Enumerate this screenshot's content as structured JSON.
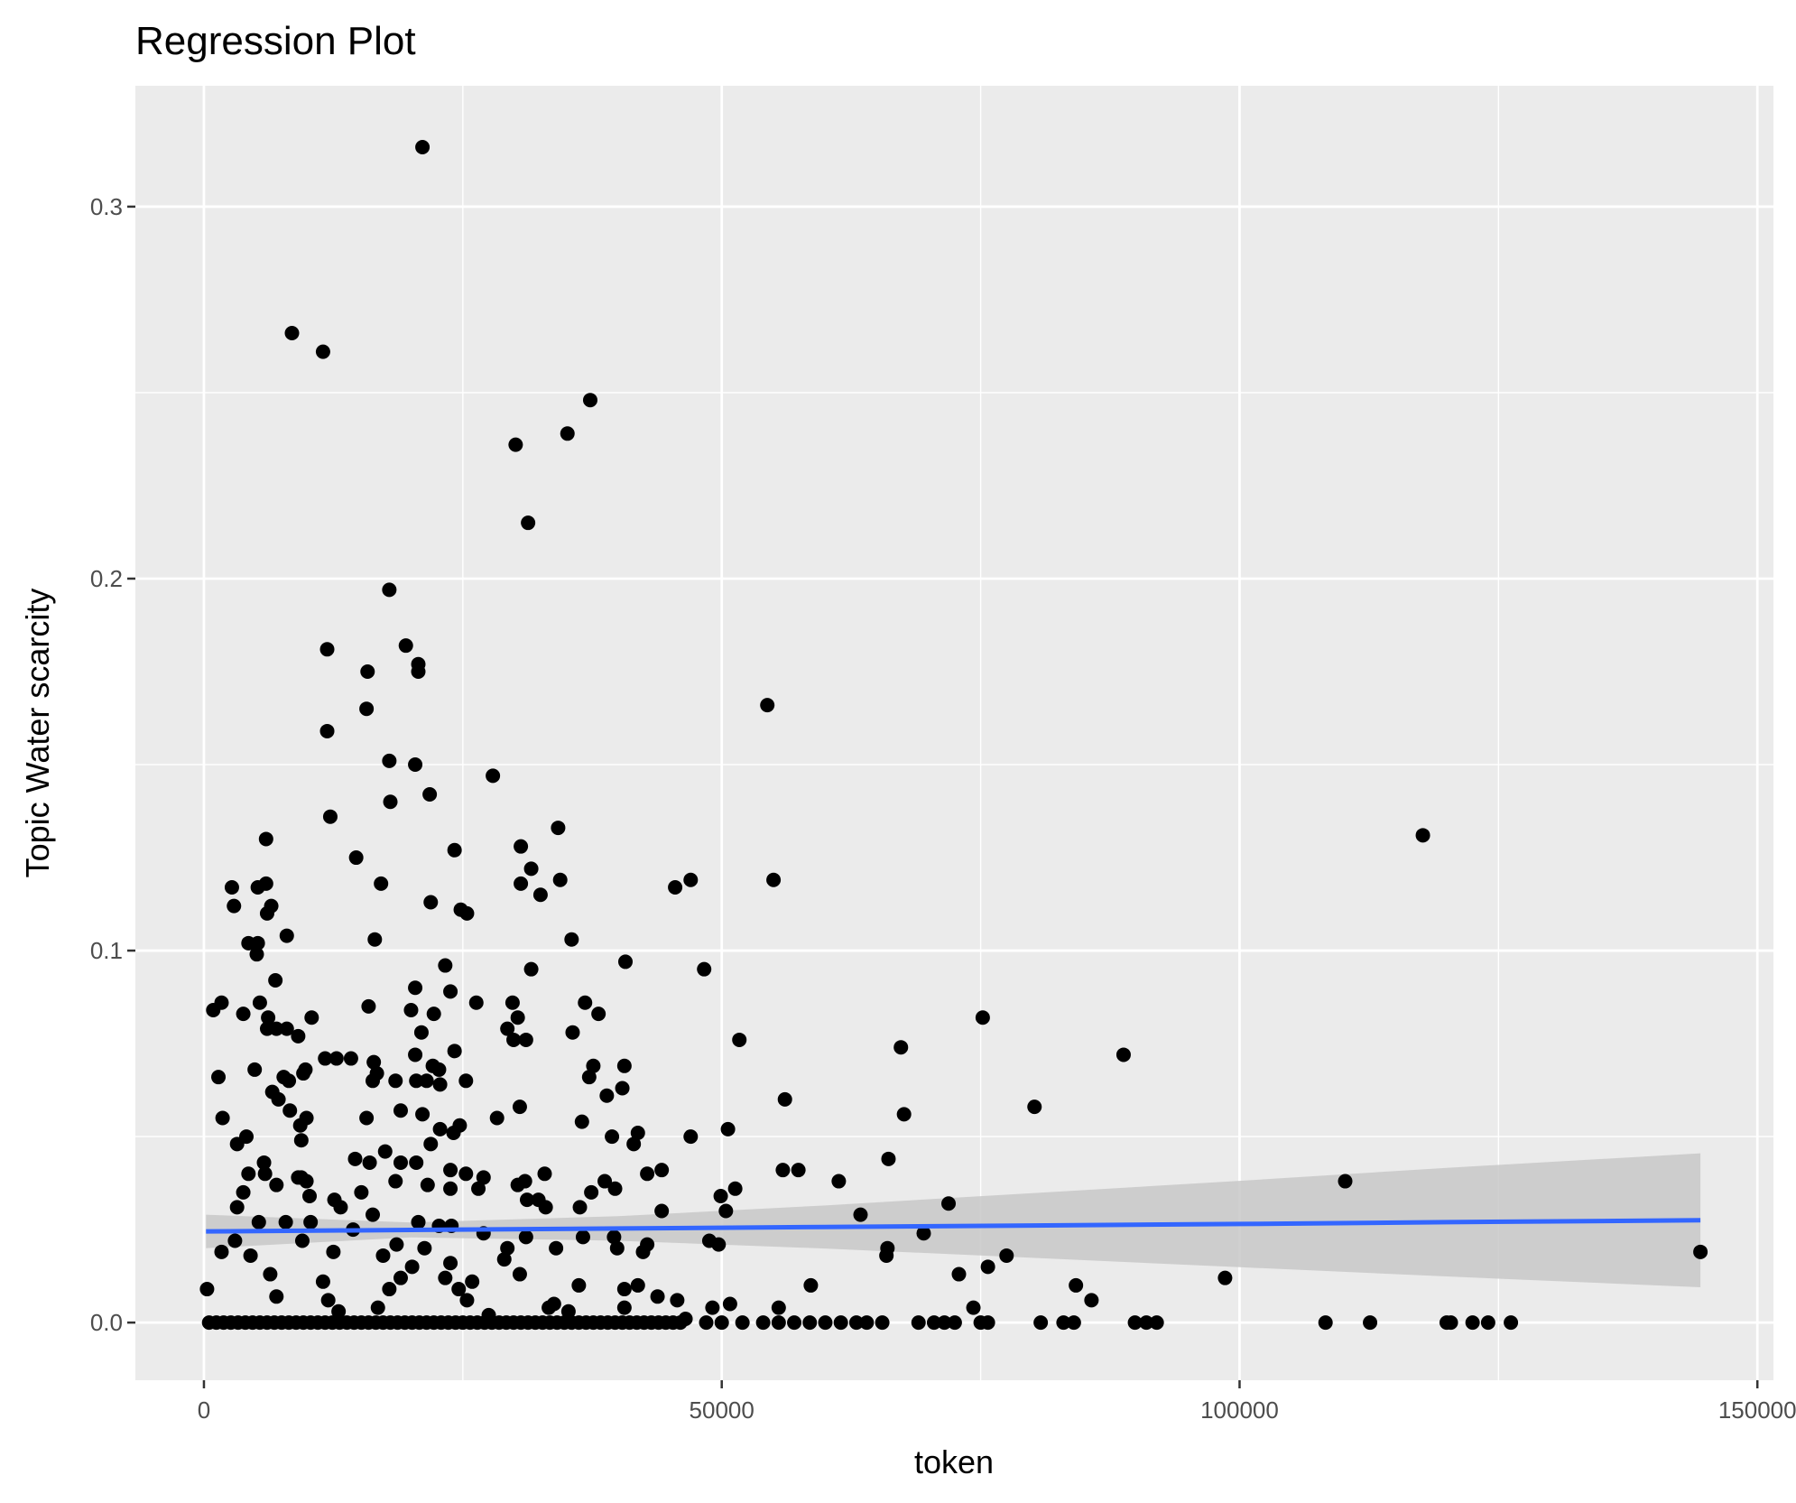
{
  "chart_data": {
    "type": "scatter",
    "title": "Regression Plot",
    "xlabel": "token",
    "ylabel": "Topic Water scarcity",
    "xlim": [
      -6620,
      151550
    ],
    "ylim": [
      -0.0155,
      0.3325
    ],
    "grid": true,
    "x_ticks": [
      0,
      50000,
      100000,
      150000
    ],
    "x_tick_labels": [
      "0",
      "50000",
      "100000",
      "150000"
    ],
    "y_ticks": [
      0.0,
      0.1,
      0.2,
      0.3
    ],
    "y_tick_labels": [
      "0.0",
      "0.1",
      "0.2",
      "0.3"
    ],
    "colors": {
      "panel": "#ebebeb",
      "point": "#000000",
      "line": "#3366ff",
      "ci": "#c8c8c8"
    },
    "points": [
      [
        21100,
        0.316
      ],
      [
        8500,
        0.266
      ],
      [
        11500,
        0.261
      ],
      [
        37300,
        0.248
      ],
      [
        35100,
        0.239
      ],
      [
        30100,
        0.236
      ],
      [
        31300,
        0.215
      ],
      [
        17900,
        0.197
      ],
      [
        19500,
        0.182
      ],
      [
        20700,
        0.177
      ],
      [
        20700,
        0.175
      ],
      [
        11900,
        0.181
      ],
      [
        15800,
        0.175
      ],
      [
        54400,
        0.166
      ],
      [
        15700,
        0.165
      ],
      [
        11900,
        0.159
      ],
      [
        17900,
        0.151
      ],
      [
        20400,
        0.15
      ],
      [
        27900,
        0.147
      ],
      [
        21800,
        0.142
      ],
      [
        18000,
        0.14
      ],
      [
        12200,
        0.136
      ],
      [
        117700,
        0.131
      ],
      [
        6000,
        0.13
      ],
      [
        34200,
        0.133
      ],
      [
        30600,
        0.128
      ],
      [
        24200,
        0.127
      ],
      [
        14700,
        0.125
      ],
      [
        31600,
        0.122
      ],
      [
        55000,
        0.119
      ],
      [
        47000,
        0.119
      ],
      [
        34400,
        0.119
      ],
      [
        2700,
        0.117
      ],
      [
        6000,
        0.118
      ],
      [
        17100,
        0.118
      ],
      [
        30600,
        0.118
      ],
      [
        45500,
        0.117
      ],
      [
        5200,
        0.117
      ],
      [
        32500,
        0.115
      ],
      [
        2900,
        0.112
      ],
      [
        6500,
        0.112
      ],
      [
        21900,
        0.113
      ],
      [
        24800,
        0.111
      ],
      [
        25400,
        0.11
      ],
      [
        6100,
        0.11
      ],
      [
        8000,
        0.104
      ],
      [
        35500,
        0.103
      ],
      [
        4300,
        0.102
      ],
      [
        5200,
        0.102
      ],
      [
        16500,
        0.103
      ],
      [
        5100,
        0.099
      ],
      [
        40700,
        0.097
      ],
      [
        23300,
        0.096
      ],
      [
        48300,
        0.095
      ],
      [
        31600,
        0.095
      ],
      [
        6900,
        0.092
      ],
      [
        20400,
        0.09
      ],
      [
        23800,
        0.089
      ],
      [
        1700,
        0.086
      ],
      [
        26300,
        0.086
      ],
      [
        29800,
        0.086
      ],
      [
        900,
        0.084
      ],
      [
        15900,
        0.085
      ],
      [
        36800,
        0.086
      ],
      [
        20000,
        0.084
      ],
      [
        3800,
        0.083
      ],
      [
        5400,
        0.086
      ],
      [
        22200,
        0.083
      ],
      [
        30300,
        0.082
      ],
      [
        38100,
        0.083
      ],
      [
        10400,
        0.082
      ],
      [
        75200,
        0.082
      ],
      [
        6200,
        0.082
      ],
      [
        6100,
        0.079
      ],
      [
        7000,
        0.079
      ],
      [
        8000,
        0.079
      ],
      [
        29300,
        0.079
      ],
      [
        9100,
        0.077
      ],
      [
        21000,
        0.078
      ],
      [
        35600,
        0.078
      ],
      [
        29900,
        0.076
      ],
      [
        31100,
        0.076
      ],
      [
        51700,
        0.076
      ],
      [
        67300,
        0.074
      ],
      [
        20400,
        0.072
      ],
      [
        24200,
        0.073
      ],
      [
        11700,
        0.071
      ],
      [
        12800,
        0.071
      ],
      [
        14200,
        0.071
      ],
      [
        88800,
        0.072
      ],
      [
        37600,
        0.069
      ],
      [
        40600,
        0.069
      ],
      [
        16400,
        0.07
      ],
      [
        22100,
        0.069
      ],
      [
        4900,
        0.068
      ],
      [
        9800,
        0.068
      ],
      [
        22700,
        0.068
      ],
      [
        9600,
        0.067
      ],
      [
        16700,
        0.067
      ],
      [
        7700,
        0.066
      ],
      [
        1400,
        0.066
      ],
      [
        37200,
        0.066
      ],
      [
        8200,
        0.065
      ],
      [
        16300,
        0.065
      ],
      [
        18500,
        0.065
      ],
      [
        20500,
        0.065
      ],
      [
        21500,
        0.065
      ],
      [
        25300,
        0.065
      ],
      [
        22800,
        0.064
      ],
      [
        40400,
        0.063
      ],
      [
        6600,
        0.062
      ],
      [
        7200,
        0.06
      ],
      [
        38900,
        0.061
      ],
      [
        56100,
        0.06
      ],
      [
        30500,
        0.058
      ],
      [
        80200,
        0.058
      ],
      [
        8300,
        0.057
      ],
      [
        19000,
        0.057
      ],
      [
        21100,
        0.056
      ],
      [
        67600,
        0.056
      ],
      [
        1800,
        0.055
      ],
      [
        9900,
        0.055
      ],
      [
        15700,
        0.055
      ],
      [
        28300,
        0.055
      ],
      [
        36500,
        0.054
      ],
      [
        9300,
        0.053
      ],
      [
        24700,
        0.053
      ],
      [
        22800,
        0.052
      ],
      [
        50600,
        0.052
      ],
      [
        41900,
        0.051
      ],
      [
        4100,
        0.05
      ],
      [
        24100,
        0.051
      ],
      [
        9400,
        0.049
      ],
      [
        39400,
        0.05
      ],
      [
        47000,
        0.05
      ],
      [
        3200,
        0.048
      ],
      [
        21900,
        0.048
      ],
      [
        41500,
        0.048
      ],
      [
        17500,
        0.046
      ],
      [
        66100,
        0.044
      ],
      [
        14600,
        0.044
      ],
      [
        16000,
        0.043
      ],
      [
        19000,
        0.043
      ],
      [
        20500,
        0.043
      ],
      [
        5800,
        0.043
      ],
      [
        55900,
        0.041
      ],
      [
        57400,
        0.041
      ],
      [
        44200,
        0.041
      ],
      [
        23800,
        0.041
      ],
      [
        25300,
        0.04
      ],
      [
        4300,
        0.04
      ],
      [
        27000,
        0.039
      ],
      [
        42800,
        0.04
      ],
      [
        5900,
        0.04
      ],
      [
        9100,
        0.039
      ],
      [
        32900,
        0.04
      ],
      [
        110200,
        0.038
      ],
      [
        61300,
        0.038
      ],
      [
        9400,
        0.039
      ],
      [
        18500,
        0.038
      ],
      [
        38700,
        0.038
      ],
      [
        31000,
        0.038
      ],
      [
        30300,
        0.037
      ],
      [
        3800,
        0.035
      ],
      [
        7000,
        0.037
      ],
      [
        9900,
        0.038
      ],
      [
        21600,
        0.037
      ],
      [
        23800,
        0.036
      ],
      [
        26500,
        0.036
      ],
      [
        39700,
        0.036
      ],
      [
        51300,
        0.036
      ],
      [
        15200,
        0.035
      ],
      [
        49900,
        0.034
      ],
      [
        37400,
        0.035
      ],
      [
        10200,
        0.034
      ],
      [
        31200,
        0.033
      ],
      [
        32300,
        0.033
      ],
      [
        12600,
        0.033
      ],
      [
        3200,
        0.031
      ],
      [
        71900,
        0.032
      ],
      [
        36300,
        0.031
      ],
      [
        33000,
        0.031
      ],
      [
        13200,
        0.031
      ],
      [
        16300,
        0.029
      ],
      [
        44200,
        0.03
      ],
      [
        50400,
        0.03
      ],
      [
        63400,
        0.029
      ],
      [
        5300,
        0.027
      ],
      [
        7900,
        0.027
      ],
      [
        10300,
        0.027
      ],
      [
        20700,
        0.027
      ],
      [
        23900,
        0.026
      ],
      [
        22700,
        0.026
      ],
      [
        27000,
        0.024
      ],
      [
        14400,
        0.025
      ],
      [
        69500,
        0.024
      ],
      [
        36600,
        0.023
      ],
      [
        39600,
        0.023
      ],
      [
        31100,
        0.023
      ],
      [
        3000,
        0.022
      ],
      [
        9500,
        0.022
      ],
      [
        48800,
        0.022
      ],
      [
        49700,
        0.021
      ],
      [
        18600,
        0.021
      ],
      [
        42800,
        0.021
      ],
      [
        39900,
        0.02
      ],
      [
        29300,
        0.02
      ],
      [
        34000,
        0.02
      ],
      [
        21300,
        0.02
      ],
      [
        66000,
        0.02
      ],
      [
        144500,
        0.019
      ],
      [
        65900,
        0.018
      ],
      [
        1700,
        0.019
      ],
      [
        42400,
        0.019
      ],
      [
        12500,
        0.019
      ],
      [
        4500,
        0.018
      ],
      [
        77500,
        0.018
      ],
      [
        17300,
        0.018
      ],
      [
        29000,
        0.017
      ],
      [
        75700,
        0.015
      ],
      [
        23800,
        0.016
      ],
      [
        20100,
        0.015
      ],
      [
        6400,
        0.013
      ],
      [
        30500,
        0.013
      ],
      [
        72900,
        0.013
      ],
      [
        98600,
        0.012
      ],
      [
        19000,
        0.012
      ],
      [
        23300,
        0.012
      ],
      [
        25900,
        0.011
      ],
      [
        11500,
        0.011
      ],
      [
        36200,
        0.01
      ],
      [
        58600,
        0.01
      ],
      [
        84200,
        0.01
      ],
      [
        300,
        0.009
      ],
      [
        24600,
        0.009
      ],
      [
        17900,
        0.009
      ],
      [
        40600,
        0.009
      ],
      [
        41900,
        0.01
      ],
      [
        7000,
        0.007
      ],
      [
        43800,
        0.007
      ],
      [
        85700,
        0.006
      ],
      [
        45700,
        0.006
      ],
      [
        25400,
        0.006
      ],
      [
        33300,
        0.004
      ],
      [
        40600,
        0.004
      ],
      [
        49100,
        0.004
      ],
      [
        55500,
        0.004
      ],
      [
        74300,
        0.004
      ],
      [
        50800,
        0.005
      ],
      [
        46500,
        0.001
      ],
      [
        13000,
        0.003
      ],
      [
        27500,
        0.002
      ],
      [
        16800,
        0.004
      ],
      [
        12000,
        0.006
      ],
      [
        33800,
        0.005
      ],
      [
        35200,
        0.003
      ]
    ],
    "zero_points_x": [
      500,
      1200,
      1900,
      2600,
      3300,
      4000,
      4700,
      5400,
      6100,
      6800,
      7500,
      8200,
      8900,
      9600,
      10300,
      11000,
      11700,
      12400,
      13100,
      13800,
      14500,
      15200,
      15900,
      16600,
      17300,
      18000,
      18700,
      19400,
      20100,
      20800,
      21500,
      22200,
      22900,
      23600,
      24300,
      25000,
      25700,
      26400,
      27100,
      27800,
      28500,
      29200,
      29900,
      30600,
      31300,
      32000,
      32700,
      33400,
      34100,
      34800,
      35500,
      36200,
      36900,
      37600,
      38300,
      39000,
      39700,
      40400,
      41100,
      41800,
      42500,
      43200,
      43900,
      44600,
      45300,
      46000,
      48500,
      50000,
      52000,
      54000,
      55500,
      57000,
      58500,
      60000,
      61500,
      63000,
      64000,
      65500,
      69000,
      70500,
      71500,
      72500,
      75000,
      75700,
      80800,
      83000,
      84000,
      89900,
      91000,
      92000,
      108300,
      112600,
      120000,
      120400,
      122500,
      124000,
      126200
    ],
    "regression": {
      "x": [
        200,
        20000,
        40000,
        60000,
        80000,
        100000,
        120000,
        144500
      ],
      "fit": [
        0.0245,
        0.0249,
        0.0253,
        0.0257,
        0.0261,
        0.0265,
        0.027,
        0.0275
      ],
      "lower": [
        0.02,
        0.0229,
        0.022,
        0.0199,
        0.0174,
        0.0149,
        0.0124,
        0.0095
      ],
      "upper": [
        0.029,
        0.0269,
        0.0286,
        0.0315,
        0.0348,
        0.0381,
        0.0416,
        0.0455
      ]
    }
  }
}
